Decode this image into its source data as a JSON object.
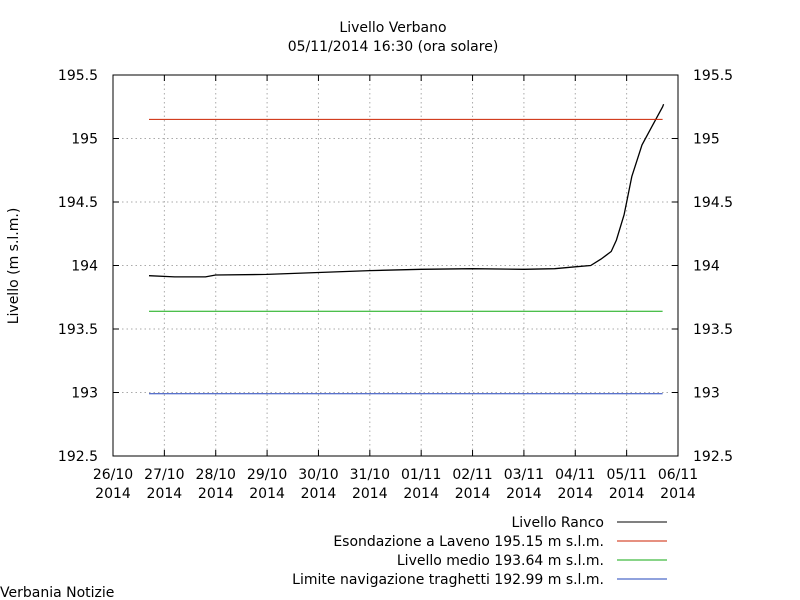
{
  "chart_data": {
    "type": "line",
    "title": "Livello Verbano",
    "subtitle": "05/11/2014 16:30 (ora solare)",
    "ylabel": "Livello (m s.l.m.)",
    "xlabel": "",
    "ylim": [
      192.5,
      195.5
    ],
    "y_ticks": [
      "192.5",
      "193",
      "193.5",
      "194",
      "194.5",
      "195",
      "195.5"
    ],
    "y_tick_values": [
      192.5,
      193,
      193.5,
      194,
      194.5,
      195,
      195.5
    ],
    "xlim": [
      0,
      11
    ],
    "x_ticks": [
      {
        "date": "26/10",
        "year": "2014"
      },
      {
        "date": "27/10",
        "year": "2014"
      },
      {
        "date": "28/10",
        "year": "2014"
      },
      {
        "date": "29/10",
        "year": "2014"
      },
      {
        "date": "30/10",
        "year": "2014"
      },
      {
        "date": "31/10",
        "year": "2014"
      },
      {
        "date": "01/11",
        "year": "2014"
      },
      {
        "date": "02/11",
        "year": "2014"
      },
      {
        "date": "03/11",
        "year": "2014"
      },
      {
        "date": "04/11",
        "year": "2014"
      },
      {
        "date": "05/11",
        "year": "2014"
      },
      {
        "date": "06/11",
        "year": "2014"
      }
    ],
    "grid": true,
    "legend_position": "bottom-right",
    "series": [
      {
        "name": "Livello Ranco",
        "color": "#000000",
        "x": [
          0.7,
          1.2,
          1.8,
          2.0,
          3.0,
          4.0,
          5.0,
          6.0,
          7.0,
          8.0,
          8.6,
          9.0,
          9.3,
          9.5,
          9.6,
          9.7,
          9.8,
          9.95,
          10.1,
          10.3,
          10.5,
          10.7,
          10.72
        ],
        "values": [
          193.92,
          193.91,
          193.91,
          193.925,
          193.93,
          193.945,
          193.96,
          193.97,
          193.975,
          193.97,
          193.975,
          193.99,
          194.0,
          194.05,
          194.08,
          194.11,
          194.2,
          194.4,
          194.7,
          194.95,
          195.1,
          195.25,
          195.27
        ]
      },
      {
        "name": "Esondazione a Laveno 195.15 m s.l.m.",
        "color": "#cc2200",
        "x": [
          0.7,
          10.7
        ],
        "values": [
          195.15,
          195.15
        ]
      },
      {
        "name": "Livello medio 193.64 m s.l.m.",
        "color": "#11aa11",
        "x": [
          0.7,
          10.7
        ],
        "values": [
          193.64,
          193.64
        ]
      },
      {
        "name": "Limite navigazione traghetti 192.99 m s.l.m.",
        "color": "#2244bb",
        "x": [
          0.7,
          10.7
        ],
        "values": [
          192.99,
          192.99
        ]
      }
    ]
  },
  "watermark": "Verbania Notizie"
}
